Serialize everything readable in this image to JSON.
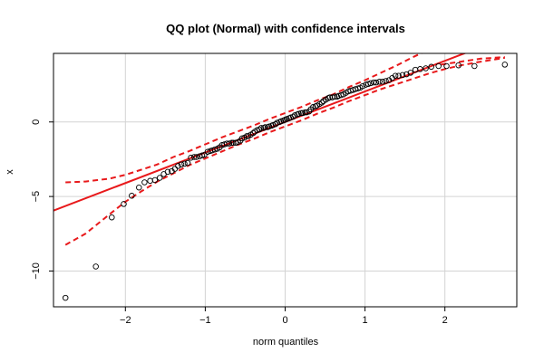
{
  "chart_data": {
    "type": "scatter",
    "title": "QQ plot (Normal) with confidence intervals",
    "xlabel": "norm quantiles",
    "ylabel": "x",
    "xlim": [
      -2.9,
      2.9
    ],
    "ylim": [
      -12.4,
      4.6
    ],
    "x_ticks": [
      -2,
      -1,
      0,
      1,
      2
    ],
    "x_tick_labels": [
      "−2",
      "−1",
      "0",
      "1",
      "2"
    ],
    "y_ticks": [
      -10,
      -5,
      0
    ],
    "y_tick_labels": [
      "−10",
      "−5",
      "0"
    ],
    "grid": true,
    "reference_line": {
      "intercept": 0.0,
      "slope": 2.05,
      "color": "#e8191b"
    },
    "confidence_band": {
      "color": "#e8191b",
      "style": "dashed",
      "upper": [
        [
          -2.75,
          -4.05
        ],
        [
          -2.5,
          -4.0
        ],
        [
          -2.2,
          -3.8
        ],
        [
          -2.0,
          -3.55
        ],
        [
          -1.8,
          -3.2
        ],
        [
          -1.6,
          -2.85
        ],
        [
          -1.4,
          -2.35
        ],
        [
          -1.2,
          -1.95
        ],
        [
          -1.0,
          -1.5
        ],
        [
          -0.8,
          -1.05
        ],
        [
          -0.6,
          -0.65
        ],
        [
          -0.4,
          -0.25
        ],
        [
          -0.2,
          0.2
        ],
        [
          0.0,
          0.6
        ],
        [
          0.2,
          1.0
        ],
        [
          0.4,
          1.45
        ],
        [
          0.6,
          1.85
        ],
        [
          0.8,
          2.35
        ],
        [
          1.0,
          2.8
        ],
        [
          1.2,
          3.3
        ],
        [
          1.4,
          3.8
        ],
        [
          1.6,
          4.35
        ],
        [
          1.8,
          4.85
        ]
      ],
      "upper_right": [
        [
          1.95,
          3.85
        ],
        [
          2.2,
          4.05
        ],
        [
          2.45,
          4.25
        ],
        [
          2.75,
          4.35
        ]
      ],
      "lower": [
        [
          -2.75,
          -8.25
        ],
        [
          -2.5,
          -7.5
        ],
        [
          -2.2,
          -6.2
        ],
        [
          -2.0,
          -5.35
        ],
        [
          -1.8,
          -4.65
        ],
        [
          -1.6,
          -4.0
        ],
        [
          -1.4,
          -3.45
        ],
        [
          -1.2,
          -2.9
        ],
        [
          -1.0,
          -2.45
        ],
        [
          -0.8,
          -2.0
        ],
        [
          -0.6,
          -1.55
        ],
        [
          -0.4,
          -1.15
        ],
        [
          -0.2,
          -0.7
        ],
        [
          0.0,
          -0.3
        ],
        [
          0.2,
          0.1
        ],
        [
          0.4,
          0.55
        ],
        [
          0.6,
          0.95
        ],
        [
          0.8,
          1.4
        ],
        [
          1.0,
          1.8
        ],
        [
          1.2,
          2.2
        ],
        [
          1.4,
          2.55
        ],
        [
          1.6,
          2.9
        ],
        [
          1.8,
          3.25
        ],
        [
          2.0,
          3.55
        ],
        [
          2.2,
          3.8
        ],
        [
          2.4,
          4.0
        ],
        [
          2.75,
          4.3
        ]
      ],
      "upper_left_tail": [
        [
          -2.75,
          -4.05
        ],
        [
          -2.4,
          -3.95
        ],
        [
          -2.0,
          -3.55
        ]
      ]
    },
    "points": [
      [
        -2.75,
        -11.8
      ],
      [
        -2.37,
        -9.7
      ],
      [
        -2.17,
        -6.4
      ],
      [
        -2.02,
        -5.5
      ],
      [
        -1.92,
        -4.95
      ],
      [
        -1.83,
        -4.4
      ],
      [
        -1.76,
        -4.05
      ],
      [
        -1.69,
        -3.95
      ],
      [
        -1.63,
        -3.9
      ],
      [
        -1.57,
        -3.75
      ],
      [
        -1.52,
        -3.5
      ],
      [
        -1.47,
        -3.35
      ],
      [
        -1.42,
        -3.3
      ],
      [
        -1.38,
        -3.15
      ],
      [
        -1.34,
        -2.95
      ],
      [
        -1.3,
        -2.85
      ],
      [
        -1.26,
        -2.8
      ],
      [
        -1.22,
        -2.75
      ],
      [
        -1.18,
        -2.4
      ],
      [
        -1.14,
        -2.35
      ],
      [
        -1.11,
        -2.35
      ],
      [
        -1.07,
        -2.3
      ],
      [
        -1.04,
        -2.25
      ],
      [
        -1.01,
        -2.2
      ],
      [
        -0.97,
        -2.0
      ],
      [
        -0.94,
        -1.95
      ],
      [
        -0.91,
        -1.9
      ],
      [
        -0.88,
        -1.85
      ],
      [
        -0.85,
        -1.8
      ],
      [
        -0.82,
        -1.7
      ],
      [
        -0.79,
        -1.55
      ],
      [
        -0.76,
        -1.5
      ],
      [
        -0.73,
        -1.45
      ],
      [
        -0.7,
        -1.45
      ],
      [
        -0.67,
        -1.4
      ],
      [
        -0.65,
        -1.4
      ],
      [
        -0.62,
        -1.4
      ],
      [
        -0.59,
        -1.35
      ],
      [
        -0.56,
        -1.25
      ],
      [
        -0.54,
        -1.1
      ],
      [
        -0.51,
        -1.05
      ],
      [
        -0.48,
        -0.95
      ],
      [
        -0.46,
        -0.95
      ],
      [
        -0.43,
        -0.85
      ],
      [
        -0.4,
        -0.75
      ],
      [
        -0.38,
        -0.65
      ],
      [
        -0.35,
        -0.55
      ],
      [
        -0.32,
        -0.5
      ],
      [
        -0.3,
        -0.4
      ],
      [
        -0.27,
        -0.4
      ],
      [
        -0.25,
        -0.35
      ],
      [
        -0.22,
        -0.35
      ],
      [
        -0.2,
        -0.3
      ],
      [
        -0.17,
        -0.25
      ],
      [
        -0.15,
        -0.2
      ],
      [
        -0.12,
        -0.15
      ],
      [
        -0.1,
        -0.05
      ],
      [
        -0.07,
        0.0
      ],
      [
        -0.05,
        0.05
      ],
      [
        -0.02,
        0.1
      ],
      [
        0.0,
        0.15
      ],
      [
        0.02,
        0.2
      ],
      [
        0.05,
        0.25
      ],
      [
        0.07,
        0.3
      ],
      [
        0.1,
        0.35
      ],
      [
        0.12,
        0.45
      ],
      [
        0.15,
        0.5
      ],
      [
        0.17,
        0.55
      ],
      [
        0.2,
        0.6
      ],
      [
        0.22,
        0.6
      ],
      [
        0.25,
        0.65
      ],
      [
        0.27,
        0.65
      ],
      [
        0.3,
        0.7
      ],
      [
        0.32,
        0.85
      ],
      [
        0.35,
        1.0
      ],
      [
        0.38,
        1.05
      ],
      [
        0.4,
        1.1
      ],
      [
        0.43,
        1.2
      ],
      [
        0.46,
        1.3
      ],
      [
        0.48,
        1.4
      ],
      [
        0.51,
        1.5
      ],
      [
        0.54,
        1.6
      ],
      [
        0.56,
        1.65
      ],
      [
        0.59,
        1.65
      ],
      [
        0.62,
        1.7
      ],
      [
        0.65,
        1.7
      ],
      [
        0.67,
        1.75
      ],
      [
        0.7,
        1.8
      ],
      [
        0.73,
        1.85
      ],
      [
        0.76,
        1.95
      ],
      [
        0.79,
        2.05
      ],
      [
        0.82,
        2.1
      ],
      [
        0.85,
        2.15
      ],
      [
        0.88,
        2.2
      ],
      [
        0.91,
        2.25
      ],
      [
        0.94,
        2.3
      ],
      [
        0.97,
        2.4
      ],
      [
        1.01,
        2.5
      ],
      [
        1.04,
        2.55
      ],
      [
        1.07,
        2.6
      ],
      [
        1.11,
        2.65
      ],
      [
        1.14,
        2.65
      ],
      [
        1.18,
        2.7
      ],
      [
        1.22,
        2.7
      ],
      [
        1.26,
        2.75
      ],
      [
        1.3,
        2.8
      ],
      [
        1.34,
        2.95
      ],
      [
        1.38,
        3.1
      ],
      [
        1.42,
        3.1
      ],
      [
        1.47,
        3.15
      ],
      [
        1.52,
        3.2
      ],
      [
        1.57,
        3.3
      ],
      [
        1.63,
        3.5
      ],
      [
        1.69,
        3.55
      ],
      [
        1.76,
        3.6
      ],
      [
        1.83,
        3.7
      ],
      [
        1.92,
        3.75
      ],
      [
        2.02,
        3.75
      ],
      [
        2.17,
        3.8
      ],
      [
        2.37,
        3.75
      ],
      [
        2.75,
        3.85
      ]
    ]
  }
}
